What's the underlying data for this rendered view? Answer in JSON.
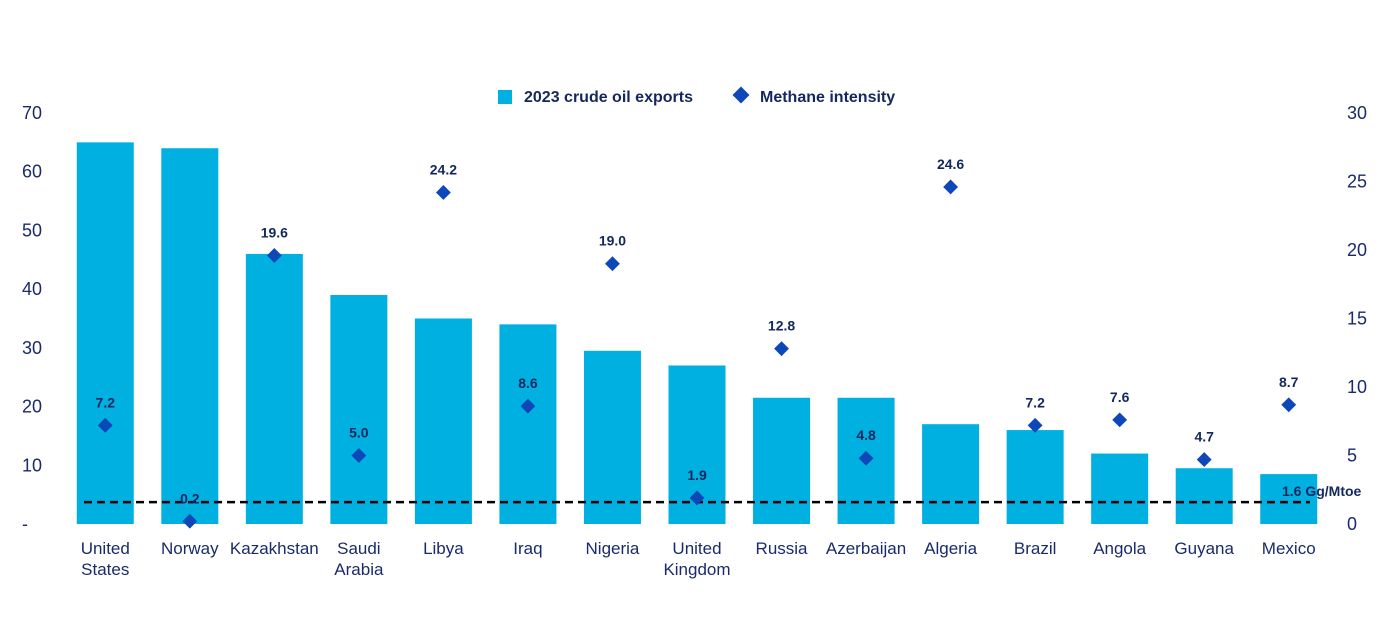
{
  "chart_data": {
    "type": "bar",
    "categories": [
      [
        "United",
        "States"
      ],
      [
        "Norway"
      ],
      [
        "Kazakhstan"
      ],
      [
        "Saudi",
        "Arabia"
      ],
      [
        "Libya"
      ],
      [
        "Iraq"
      ],
      [
        "Nigeria"
      ],
      [
        "United",
        "Kingdom"
      ],
      [
        "Russia"
      ],
      [
        "Azerbaijan"
      ],
      [
        "Algeria"
      ],
      [
        "Brazil"
      ],
      [
        "Angola"
      ],
      [
        "Guyana"
      ],
      [
        "Mexico"
      ]
    ],
    "series": [
      {
        "name": "2023 crude oil exports",
        "kind": "bar",
        "axis": "left",
        "values": [
          65,
          64,
          46,
          39,
          35,
          34,
          29.5,
          27,
          21.5,
          21.5,
          17,
          16,
          12,
          9.5,
          8.5
        ]
      },
      {
        "name": "Methane intensity",
        "kind": "marker",
        "axis": "right",
        "values": [
          7.2,
          0.2,
          19.6,
          5.0,
          24.2,
          8.6,
          19.0,
          1.9,
          12.8,
          4.8,
          24.6,
          7.2,
          7.6,
          4.7,
          8.7
        ],
        "labels": [
          "7.2",
          "0.2",
          "19.6",
          "5.0",
          "24.2",
          "8.6",
          "19.0",
          "1.9",
          "12.8",
          "4.8",
          "24.6",
          "7.2",
          "7.6",
          "4.7",
          "8.7"
        ]
      }
    ],
    "left_axis": {
      "ylim": [
        0,
        70
      ],
      "ticks": [
        0,
        10,
        20,
        30,
        40,
        50,
        60,
        70
      ],
      "tick_labels": [
        "-",
        "10",
        "20",
        "30",
        "40",
        "50",
        "60",
        "70"
      ]
    },
    "right_axis": {
      "ylim": [
        0,
        30
      ],
      "ticks": [
        0,
        5,
        10,
        15,
        20,
        25,
        30
      ],
      "tick_labels": [
        "0",
        "5",
        "10",
        "15",
        "20",
        "25",
        "30"
      ]
    },
    "reference_line": {
      "axis": "right",
      "value": 1.6,
      "label": "1.6 Gg/Mtoe"
    },
    "legend_position": "top-center",
    "grid": false,
    "colors": {
      "bars": "#00b0e0",
      "markers": "#0d47b8",
      "text": "#14275e",
      "reference": "#000000"
    }
  }
}
